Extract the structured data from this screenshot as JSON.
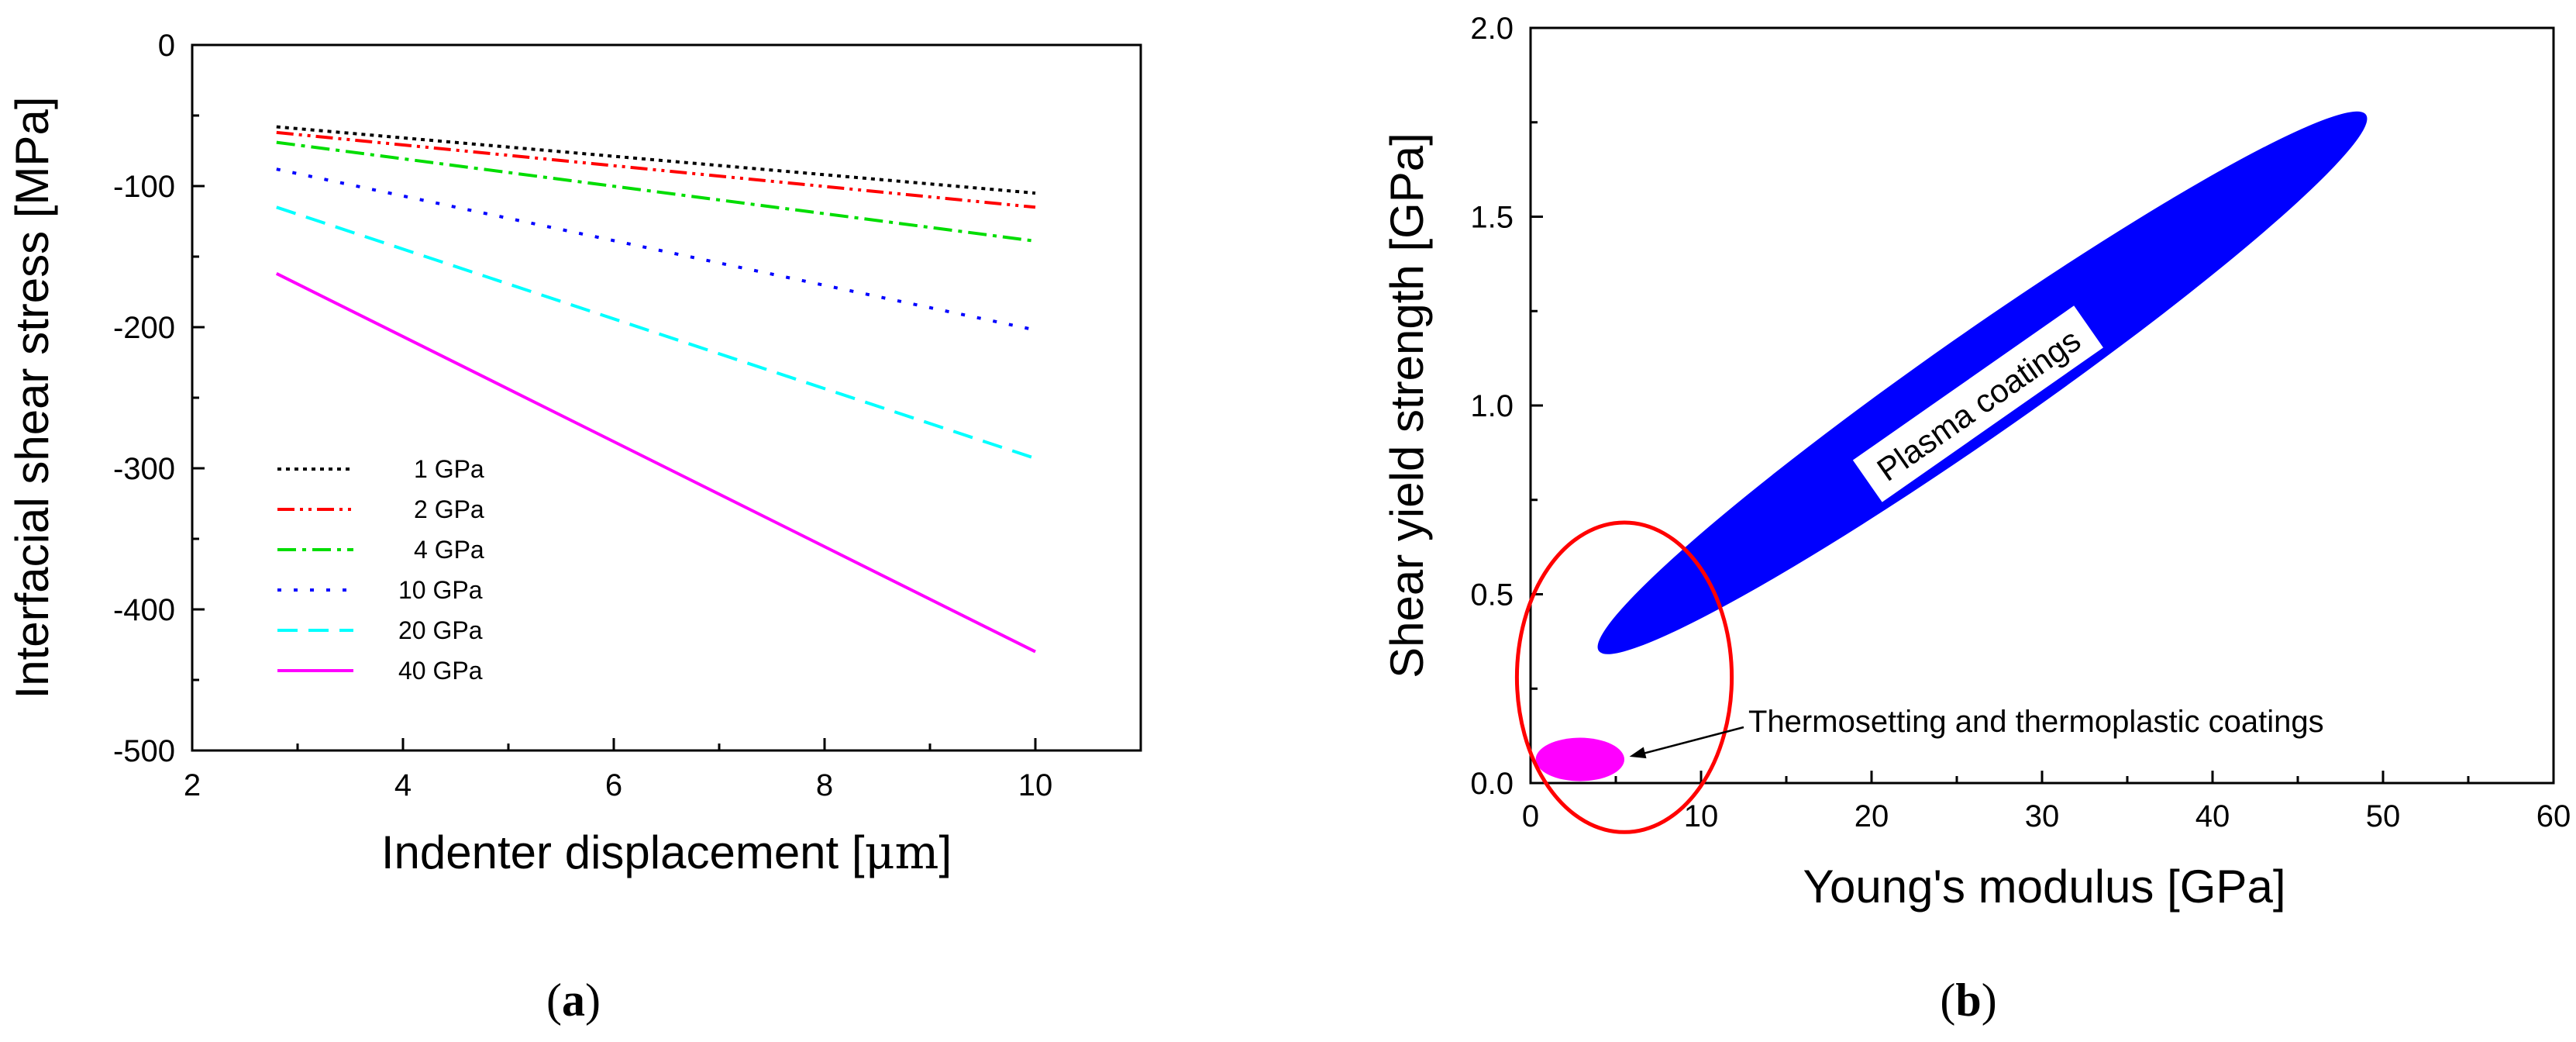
{
  "chart_data": [
    {
      "id": "a",
      "type": "line",
      "panel_label_open": "(",
      "panel_label_letter": "a",
      "panel_label_close": ")",
      "xlabel_text": "Indenter displacement [",
      "xlabel_unit": "μm",
      "xlabel_close": "]",
      "ylabel": "Interfacial shear stress [MPa]",
      "xlim": [
        2,
        11
      ],
      "ylim": [
        -500,
        0
      ],
      "xticks": [
        2,
        4,
        6,
        8,
        10
      ],
      "yticks": [
        0,
        -100,
        -200,
        -300,
        -400,
        -500
      ],
      "legend_position": "lower-left",
      "series": [
        {
          "name": "1 GPa",
          "color": "#000000",
          "style": "dotted",
          "x": [
            2.8,
            10
          ],
          "y": [
            -58,
            -105
          ]
        },
        {
          "name": "2 GPa",
          "color": "#ff0000",
          "style": "dash-dot-dot",
          "x": [
            2.8,
            10
          ],
          "y": [
            -62,
            -115
          ]
        },
        {
          "name": "4 GPa",
          "color": "#00dd00",
          "style": "dash-dot",
          "x": [
            2.8,
            10
          ],
          "y": [
            -69,
            -139
          ]
        },
        {
          "name": "10 GPa",
          "color": "#0000ff",
          "style": "sparse-dot",
          "x": [
            2.8,
            10
          ],
          "y": [
            -88,
            -202
          ]
        },
        {
          "name": "20 GPa",
          "color": "#00ffff",
          "style": "dashed",
          "x": [
            2.8,
            10
          ],
          "y": [
            -115,
            -293
          ]
        },
        {
          "name": "40 GPa",
          "color": "#ff00ff",
          "style": "solid",
          "x": [
            2.8,
            10
          ],
          "y": [
            -162,
            -430
          ]
        }
      ]
    },
    {
      "id": "b",
      "type": "scatter",
      "panel_label_open": "(",
      "panel_label_letter": "b",
      "panel_label_close": ")",
      "xlabel": "Young's modulus [GPa]",
      "ylabel": "Shear yield strength [GPa]",
      "xlim": [
        0,
        60
      ],
      "ylim": [
        0,
        2.0
      ],
      "xticks": [
        0,
        10,
        20,
        30,
        40,
        50,
        60
      ],
      "yticks": [
        0.0,
        0.5,
        1.0,
        1.5,
        2.0
      ],
      "ytick_labels": [
        "0.0",
        "0.5",
        "1.0",
        "1.5",
        "2.0"
      ],
      "regions": [
        {
          "name": "Plasma coatings",
          "color": "#0000ff",
          "x_range": [
            4,
            49
          ],
          "y_range": [
            0.35,
            1.77
          ],
          "label": "Plasma coatings"
        },
        {
          "name": "Thermosetting and thermoplastic coatings",
          "color": "#ff00ff",
          "x_range": [
            0.3,
            5.5
          ],
          "y_range": [
            0.005,
            0.12
          ]
        }
      ],
      "highlight_circle": {
        "color": "#ff0000",
        "center": [
          5.5,
          0.28
        ],
        "radius_x": 6.3,
        "radius_y": 0.41
      },
      "annotation": {
        "text": "Thermosetting and thermoplastic coatings",
        "points_to": [
          5.8,
          0.07
        ]
      }
    }
  ]
}
